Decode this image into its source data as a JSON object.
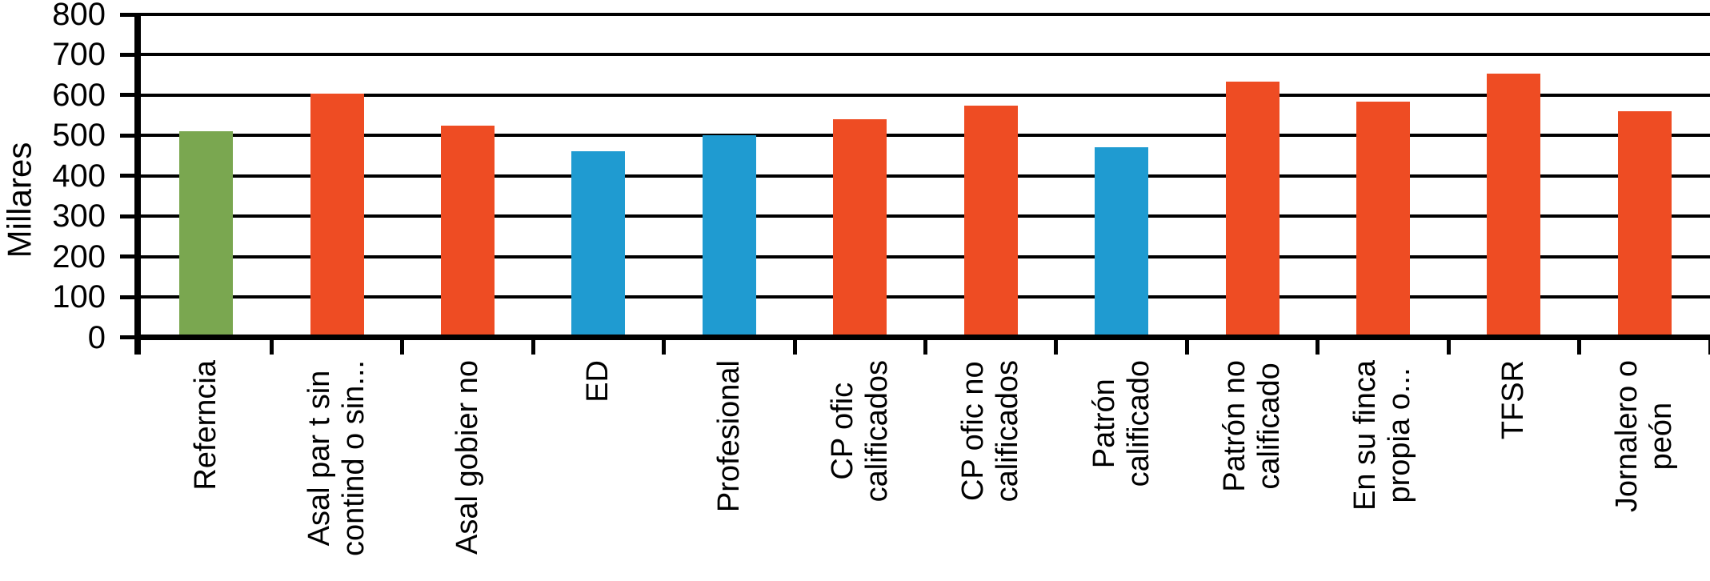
{
  "chart_data": {
    "type": "bar",
    "title": "",
    "ylabel": "Millares",
    "xlabel": "",
    "ylim": [
      0,
      800
    ],
    "yticks": [
      800,
      700,
      600,
      500,
      400,
      300,
      200,
      100,
      0
    ],
    "grid": "horizontal",
    "legend": "none",
    "background_color": "#FFFFFF",
    "axis_color": "#000000",
    "categories": [
      "Referncia",
      "Asal par t sin\ncontind o sin...",
      "Asal gobier no",
      "ED",
      "Profesional",
      "CP ofic\ncalificados",
      "CP ofic no\ncalificados",
      "Patrón\ncalificado",
      "Patrón no\ncalificado",
      "En su finca\npropia o...",
      "TFSR",
      "Jornalero o\npeón"
    ],
    "values": [
      510,
      605,
      525,
      460,
      500,
      540,
      575,
      470,
      635,
      585,
      655,
      560
    ],
    "bar_colors": [
      "#7AA750",
      "#EE4C23",
      "#EE4C23",
      "#1F9BD1",
      "#1F9BD1",
      "#EE4C23",
      "#EE4C23",
      "#1F9BD1",
      "#EE4C23",
      "#EE4C23",
      "#EE4C23",
      "#EE4C23"
    ],
    "color_legend": {
      "reference_green": "#7AA750",
      "default_orange": "#EE4C23",
      "highlight_blue": "#1F9BD1"
    }
  }
}
